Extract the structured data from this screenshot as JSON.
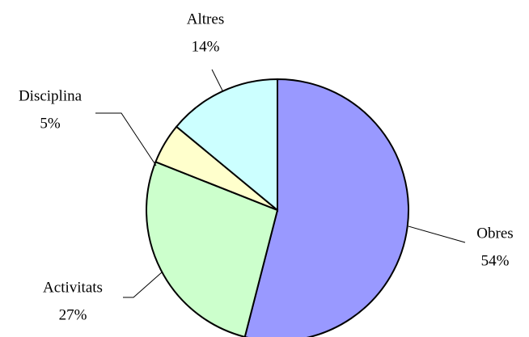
{
  "chart_data": {
    "type": "pie",
    "categories": [
      "Obres",
      "Activitats",
      "Disciplina",
      "Altres"
    ],
    "values": [
      54,
      27,
      5,
      14
    ],
    "value_labels": [
      "54%",
      "27%",
      "5%",
      "14%"
    ],
    "colors": [
      "#9999ff",
      "#ccffcc",
      "#ffffcc",
      "#ccffff"
    ]
  }
}
